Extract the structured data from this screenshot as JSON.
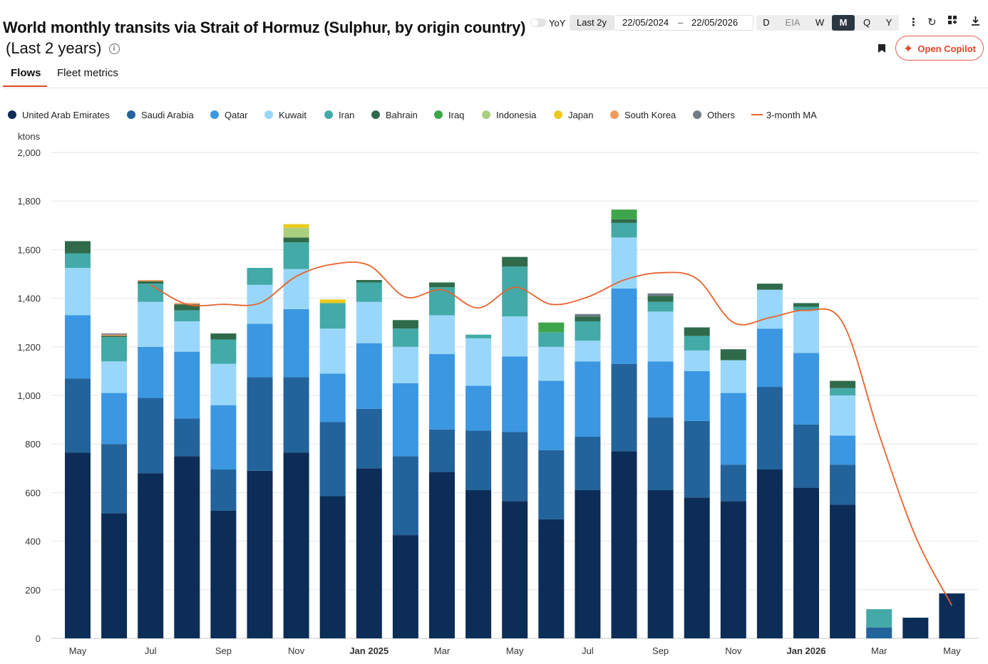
{
  "header": {
    "title": "World monthly transits via Strait of Hormuz (Sulphur, by origin country)",
    "subtitle": "(Last 2 years)",
    "info_icon": "info-icon"
  },
  "tabs": [
    {
      "label": "Flows",
      "active": true
    },
    {
      "label": "Fleet metrics",
      "active": false
    }
  ],
  "toolbar": {
    "yoy_label": "YoY",
    "yoy_on": false,
    "range_preset": "Last 2y",
    "date_from": "22/05/2024",
    "date_sep": "–",
    "date_to": "22/05/2026",
    "periods": [
      {
        "label": "D",
        "active": false
      },
      {
        "label": "EIA",
        "active": false
      },
      {
        "label": "W",
        "active": false
      },
      {
        "label": "M",
        "active": true
      },
      {
        "label": "Q",
        "active": false
      },
      {
        "label": "Y",
        "active": false
      }
    ],
    "icons": [
      "more-vertical-icon",
      "refresh-icon",
      "layout-grid-icon",
      "download-icon",
      "bookmark-icon"
    ],
    "copilot_label": "Open Copilot"
  },
  "colors": {
    "United Arab Emirates": "#0b2d57",
    "Saudi Arabia": "#23639b",
    "Qatar": "#3b97e2",
    "Kuwait": "#98d7fa",
    "Iran": "#43aaa8",
    "Bahrain": "#2f6b4a",
    "Iraq": "#3ea64a",
    "Indonesia": "#a9cf7f",
    "Japan": "#ecca1e",
    "South Korea": "#f19a5e",
    "Others": "#707c88",
    "3-month MA": "#e8622c",
    "accent": "#e0452a"
  },
  "chart_data": {
    "type": "bar",
    "stacked": true,
    "ylabel": "ktons",
    "ylim": [
      0,
      2000
    ],
    "yticks": [
      0,
      200,
      400,
      600,
      800,
      1000,
      1200,
      1400,
      1600,
      1800,
      2000
    ],
    "grid": true,
    "legend_position": "top-left",
    "categories": [
      "May 2024",
      "Jun 2024",
      "Jul 2024",
      "Aug 2024",
      "Sep 2024",
      "Oct 2024",
      "Nov 2024",
      "Dec 2024",
      "Jan 2025",
      "Feb 2025",
      "Mar 2025",
      "Apr 2025",
      "May 2025",
      "Jun 2025",
      "Jul 2025",
      "Aug 2025",
      "Sep 2025",
      "Oct 2025",
      "Nov 2025",
      "Dec 2025",
      "Jan 2026",
      "Feb 2026",
      "Mar 2026",
      "Apr 2026",
      "May 2026"
    ],
    "x_tick_labels": [
      {
        "index": 0,
        "label": "May"
      },
      {
        "index": 2,
        "label": "Jul"
      },
      {
        "index": 4,
        "label": "Sep"
      },
      {
        "index": 6,
        "label": "Nov"
      },
      {
        "index": 8,
        "label": "Jan 2025",
        "bold": true
      },
      {
        "index": 10,
        "label": "Mar"
      },
      {
        "index": 12,
        "label": "May"
      },
      {
        "index": 14,
        "label": "Jul"
      },
      {
        "index": 16,
        "label": "Sep"
      },
      {
        "index": 18,
        "label": "Nov"
      },
      {
        "index": 20,
        "label": "Jan 2026",
        "bold": true
      },
      {
        "index": 22,
        "label": "Mar"
      },
      {
        "index": 24,
        "label": "May"
      }
    ],
    "series": [
      {
        "name": "United Arab Emirates",
        "values": [
          765,
          515,
          680,
          750,
          525,
          690,
          765,
          585,
          700,
          425,
          685,
          610,
          565,
          490,
          610,
          770,
          610,
          580,
          565,
          695,
          620,
          550,
          0,
          85,
          185
        ]
      },
      {
        "name": "Saudi Arabia",
        "values": [
          305,
          285,
          310,
          155,
          170,
          385,
          310,
          305,
          245,
          325,
          175,
          245,
          285,
          285,
          220,
          360,
          300,
          315,
          150,
          340,
          260,
          165,
          45,
          0,
          0
        ]
      },
      {
        "name": "Qatar",
        "values": [
          260,
          210,
          210,
          275,
          265,
          220,
          280,
          200,
          270,
          300,
          310,
          185,
          310,
          285,
          310,
          310,
          230,
          205,
          295,
          240,
          295,
          120,
          0,
          0,
          0
        ]
      },
      {
        "name": "Kuwait",
        "values": [
          195,
          130,
          185,
          125,
          170,
          160,
          165,
          185,
          170,
          150,
          160,
          195,
          165,
          140,
          85,
          210,
          205,
          85,
          135,
          160,
          175,
          165,
          0,
          0,
          0
        ]
      },
      {
        "name": "Iran",
        "values": [
          60,
          100,
          75,
          45,
          100,
          70,
          110,
          105,
          80,
          75,
          115,
          15,
          205,
          60,
          80,
          60,
          40,
          60,
          0,
          0,
          15,
          30,
          75,
          0,
          0
        ]
      },
      {
        "name": "Bahrain",
        "values": [
          50,
          5,
          10,
          25,
          25,
          0,
          20,
          0,
          10,
          35,
          20,
          0,
          40,
          0,
          20,
          15,
          25,
          35,
          45,
          25,
          15,
          30,
          0,
          0,
          0
        ]
      },
      {
        "name": "Iraq",
        "values": [
          0,
          0,
          0,
          0,
          0,
          0,
          0,
          0,
          0,
          0,
          0,
          0,
          0,
          40,
          0,
          40,
          0,
          0,
          0,
          0,
          0,
          0,
          0,
          0,
          0
        ]
      },
      {
        "name": "Indonesia",
        "values": [
          0,
          0,
          0,
          0,
          0,
          0,
          40,
          0,
          0,
          0,
          0,
          0,
          0,
          0,
          0,
          0,
          0,
          0,
          0,
          0,
          0,
          0,
          0,
          0,
          0
        ]
      },
      {
        "name": "Japan",
        "values": [
          0,
          0,
          0,
          0,
          0,
          0,
          15,
          15,
          0,
          0,
          0,
          0,
          0,
          0,
          0,
          0,
          0,
          0,
          0,
          0,
          0,
          0,
          0,
          0,
          0
        ]
      },
      {
        "name": "South Korea",
        "values": [
          0,
          5,
          5,
          5,
          0,
          0,
          0,
          0,
          0,
          0,
          0,
          0,
          0,
          0,
          0,
          0,
          0,
          0,
          0,
          0,
          0,
          0,
          0,
          0,
          0
        ]
      },
      {
        "name": "Others",
        "values": [
          0,
          5,
          0,
          0,
          0,
          0,
          0,
          0,
          0,
          0,
          0,
          0,
          0,
          0,
          10,
          0,
          10,
          0,
          0,
          0,
          0,
          0,
          0,
          0,
          0
        ]
      }
    ],
    "moving_average": {
      "name": "3-month MA",
      "start_index": 2,
      "values": [
        null,
        null,
        1455,
        1375,
        1375,
        1380,
        1490,
        1540,
        1535,
        1405,
        1435,
        1360,
        1445,
        1375,
        1405,
        1475,
        1505,
        1480,
        1300,
        1320,
        1350,
        1300,
        840,
        420,
        135
      ]
    }
  }
}
